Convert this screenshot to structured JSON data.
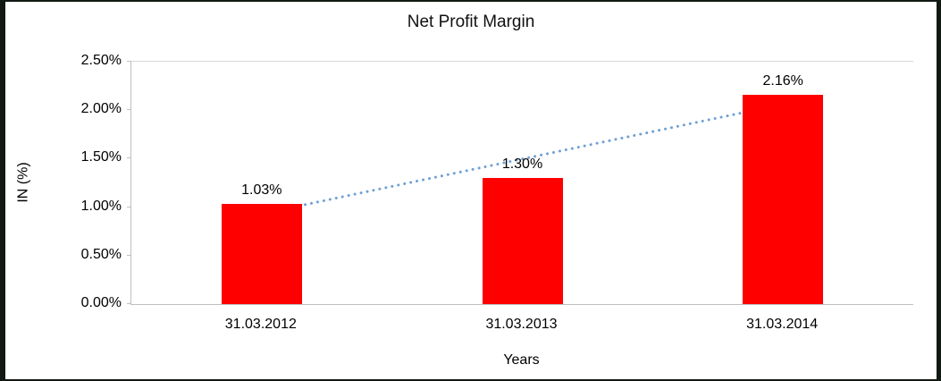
{
  "chart_data": {
    "type": "bar",
    "title": "Net Profit Margin",
    "categories": [
      "31.03.2012",
      "31.03.2013",
      "31.03.2014"
    ],
    "values": [
      1.03,
      1.3,
      2.16
    ],
    "value_labels": [
      "1.03%",
      "1.30%",
      "2.16%"
    ],
    "xlabel": "Years",
    "ylabel": "IN (%)",
    "ylim": [
      0,
      2.5
    ],
    "ytick_step": 0.5,
    "ytick_labels": [
      "0.00%",
      "0.50%",
      "1.00%",
      "1.50%",
      "2.00%",
      "2.50%"
    ],
    "bar_color": "#FF0000",
    "grid": "top-border-only",
    "legend": "none",
    "trendline": {
      "type": "linear",
      "style": "dotted",
      "color": "#6FA0D6"
    }
  }
}
